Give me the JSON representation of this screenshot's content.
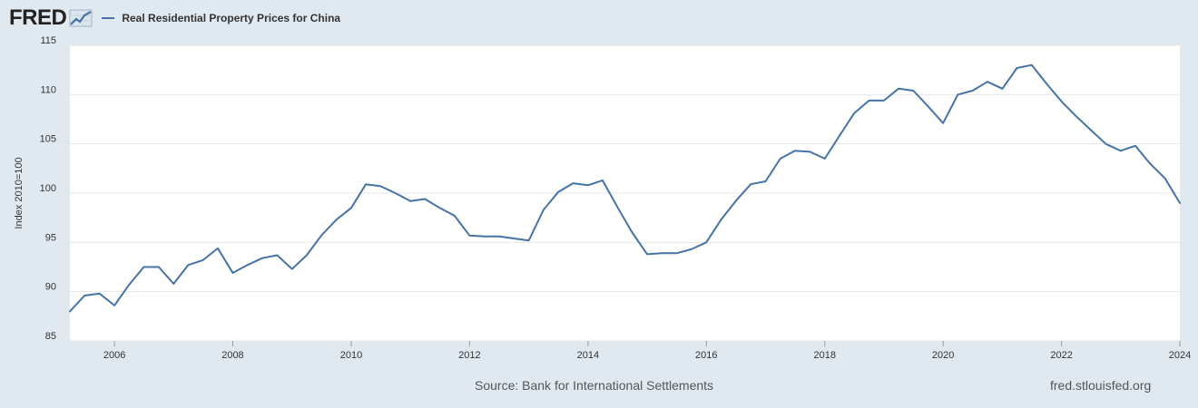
{
  "header": {
    "logo_text": "FRED",
    "logo_icon": "line-graph-icon"
  },
  "colors": {
    "series": "#4572a7",
    "background": "#e1e9f0",
    "plot_background": "#ffffff",
    "grid": "#e6e6e6"
  },
  "footer": {
    "source": "Source: Bank for International Settlements",
    "site": "fred.stlouisfed.org"
  },
  "chart_data": {
    "type": "line",
    "title": "",
    "xlabel": "",
    "ylabel": "Index 2010=100",
    "ylim": [
      85,
      115
    ],
    "yticks": [
      85,
      90,
      95,
      100,
      105,
      110,
      115
    ],
    "xlim": [
      "2005-04-01",
      "2024-01-01"
    ],
    "xticks": [
      "2006",
      "2008",
      "2010",
      "2012",
      "2014",
      "2016",
      "2018",
      "2020",
      "2022",
      "2024"
    ],
    "grid": true,
    "legend": "top-left",
    "series": [
      {
        "name": "Real Residential Property Prices for China",
        "points": [
          [
            "2005-04-01",
            88.0
          ],
          [
            "2005-07-01",
            89.6
          ],
          [
            "2005-10-01",
            89.8
          ],
          [
            "2006-01-01",
            88.6
          ],
          [
            "2006-04-01",
            90.7
          ],
          [
            "2006-07-01",
            92.5
          ],
          [
            "2006-10-01",
            92.5
          ],
          [
            "2007-01-01",
            90.8
          ],
          [
            "2007-04-01",
            92.7
          ],
          [
            "2007-07-01",
            93.2
          ],
          [
            "2007-10-01",
            94.4
          ],
          [
            "2008-01-01",
            91.9
          ],
          [
            "2008-04-01",
            92.7
          ],
          [
            "2008-07-01",
            93.4
          ],
          [
            "2008-10-01",
            93.7
          ],
          [
            "2009-01-01",
            92.3
          ],
          [
            "2009-04-01",
            93.7
          ],
          [
            "2009-07-01",
            95.7
          ],
          [
            "2009-10-01",
            97.3
          ],
          [
            "2010-01-01",
            98.5
          ],
          [
            "2010-04-01",
            100.9
          ],
          [
            "2010-07-01",
            100.7
          ],
          [
            "2010-10-01",
            100.0
          ],
          [
            "2011-01-01",
            99.2
          ],
          [
            "2011-04-01",
            99.4
          ],
          [
            "2011-07-01",
            98.5
          ],
          [
            "2011-10-01",
            97.7
          ],
          [
            "2012-01-01",
            95.7
          ],
          [
            "2012-04-01",
            95.6
          ],
          [
            "2012-07-01",
            95.6
          ],
          [
            "2012-10-01",
            95.4
          ],
          [
            "2013-01-01",
            95.2
          ],
          [
            "2013-04-01",
            98.3
          ],
          [
            "2013-07-01",
            100.1
          ],
          [
            "2013-10-01",
            101.0
          ],
          [
            "2014-01-01",
            100.8
          ],
          [
            "2014-04-01",
            101.3
          ],
          [
            "2014-07-01",
            98.6
          ],
          [
            "2014-10-01",
            96.0
          ],
          [
            "2015-01-01",
            93.8
          ],
          [
            "2015-04-01",
            93.9
          ],
          [
            "2015-07-01",
            93.9
          ],
          [
            "2015-10-01",
            94.3
          ],
          [
            "2016-01-01",
            95.0
          ],
          [
            "2016-04-01",
            97.3
          ],
          [
            "2016-07-01",
            99.2
          ],
          [
            "2016-10-01",
            100.9
          ],
          [
            "2017-01-01",
            101.2
          ],
          [
            "2017-04-01",
            103.5
          ],
          [
            "2017-07-01",
            104.3
          ],
          [
            "2017-10-01",
            104.2
          ],
          [
            "2018-01-01",
            103.5
          ],
          [
            "2018-04-01",
            105.8
          ],
          [
            "2018-07-01",
            108.1
          ],
          [
            "2018-10-01",
            109.4
          ],
          [
            "2019-01-01",
            109.4
          ],
          [
            "2019-04-01",
            110.6
          ],
          [
            "2019-07-01",
            110.4
          ],
          [
            "2019-10-01",
            108.8
          ],
          [
            "2020-01-01",
            107.1
          ],
          [
            "2020-04-01",
            110.0
          ],
          [
            "2020-07-01",
            110.4
          ],
          [
            "2020-10-01",
            111.3
          ],
          [
            "2021-01-01",
            110.6
          ],
          [
            "2021-04-01",
            112.7
          ],
          [
            "2021-07-01",
            113.0
          ],
          [
            "2021-10-01",
            111.1
          ],
          [
            "2022-01-01",
            109.3
          ],
          [
            "2022-04-01",
            107.8
          ],
          [
            "2022-07-01",
            106.4
          ],
          [
            "2022-10-01",
            105.0
          ],
          [
            "2023-01-01",
            104.3
          ],
          [
            "2023-04-01",
            104.8
          ],
          [
            "2023-07-01",
            103.0
          ],
          [
            "2023-10-01",
            101.5
          ],
          [
            "2024-01-01",
            99.0
          ]
        ]
      }
    ]
  }
}
